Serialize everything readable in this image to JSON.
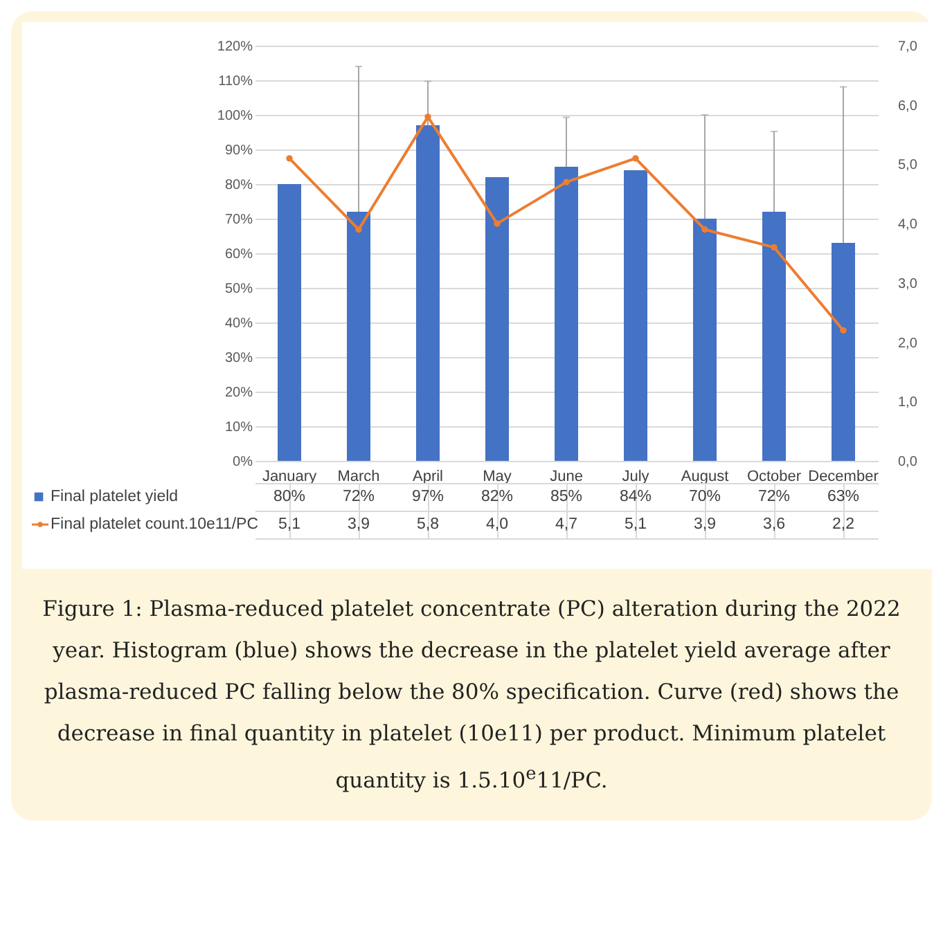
{
  "chart_data": {
    "type": "bar",
    "categories": [
      "January",
      "March",
      "April",
      "May",
      "June",
      "July",
      "August",
      "October",
      "December"
    ],
    "series": [
      {
        "name": "Final platelet yield",
        "color": "#4472c4",
        "values": [
          80,
          72,
          97,
          82,
          85,
          84,
          70,
          72,
          63
        ],
        "value_labels": [
          "80%",
          "72%",
          "97%",
          "82%",
          "85%",
          "84%",
          "70%",
          "72%",
          "63%"
        ],
        "errors": [
          null,
          [
            72,
            114
          ],
          [
            97,
            109.7
          ],
          null,
          [
            85,
            99.3
          ],
          null,
          [
            70,
            100
          ],
          [
            72,
            95.2
          ],
          [
            63,
            108.1
          ]
        ]
      },
      {
        "name": "Final platelet count.10e11/PC",
        "type": "line",
        "axis": "y2",
        "color": "#ed7d31",
        "marker": "circle",
        "values": [
          5.1,
          3.9,
          5.8,
          4.0,
          4.7,
          5.1,
          3.9,
          3.6,
          2.2
        ],
        "value_labels": [
          "5,1",
          "3,9",
          "5,8",
          "4,0",
          "4,7",
          "5,1",
          "3,9",
          "3,6",
          "2,2"
        ]
      }
    ],
    "ylim": [
      0,
      120
    ],
    "yticks": [
      {
        "value": 0,
        "label": "0%"
      },
      {
        "value": 10,
        "label": "10%"
      },
      {
        "value": 20,
        "label": "20%"
      },
      {
        "value": 30,
        "label": "30%"
      },
      {
        "value": 40,
        "label": "40%"
      },
      {
        "value": 50,
        "label": "50%"
      },
      {
        "value": 60,
        "label": "60%"
      },
      {
        "value": 70,
        "label": "70%"
      },
      {
        "value": 80,
        "label": "80%"
      },
      {
        "value": 90,
        "label": "90%"
      },
      {
        "value": 100,
        "label": "100%"
      },
      {
        "value": 110,
        "label": "110%"
      },
      {
        "value": 120,
        "label": "120%"
      }
    ],
    "y2lim": [
      0,
      7
    ],
    "y2ticks": [
      {
        "value": 0,
        "label": "0,0"
      },
      {
        "value": 1,
        "label": "1,0"
      },
      {
        "value": 2,
        "label": "2,0"
      },
      {
        "value": 3,
        "label": "3,0"
      },
      {
        "value": 4,
        "label": "4,0"
      },
      {
        "value": 5,
        "label": "5,0"
      },
      {
        "value": 6,
        "label": "6,0"
      },
      {
        "value": 7,
        "label": "7,0"
      }
    ],
    "grid": "y",
    "legend": "bottom",
    "annotations": [
      "Figure 1: Plasma-reduced platelet concentrate (PC) alteration during the 2022 year. Histogram (blue) shows the decrease in the platelet yield average after plasma-reduced PC falling below the 80% specification. Curve (red) shows the decrease in final quantity in platelet (10e11) per product. Minimum platelet quantity is 1.5.10$^{e}$11/PC."
    ]
  }
}
